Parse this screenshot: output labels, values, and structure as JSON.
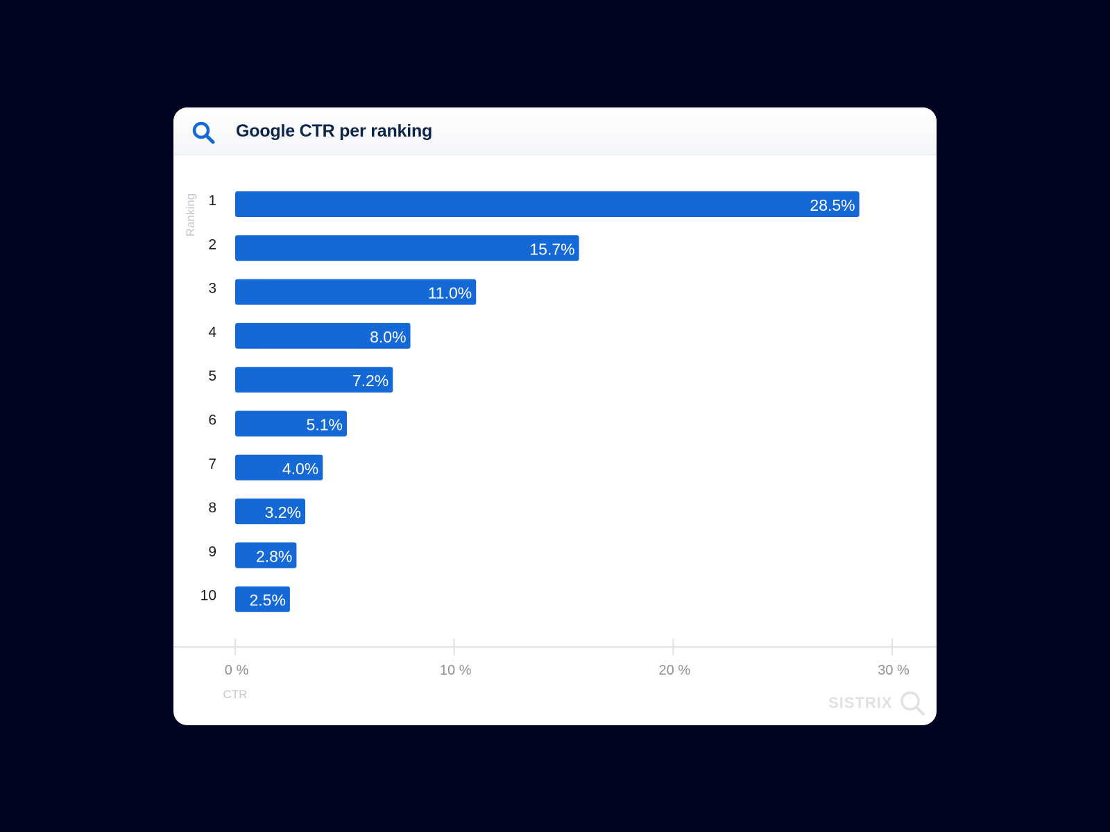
{
  "card": {
    "title": "Google CTR per ranking",
    "title_icon": "search-icon",
    "brand": "SISTRIX",
    "brand_icon": "magnifier-icon"
  },
  "colors": {
    "background": "#010420",
    "bar": "#1469d6",
    "title": "#0d2548",
    "icon": "#1469d6"
  },
  "chart_data": {
    "type": "bar",
    "orientation": "horizontal",
    "title": "Google CTR per ranking",
    "xlabel": "CTR",
    "ylabel": "Ranking",
    "categories": [
      "1",
      "2",
      "3",
      "4",
      "5",
      "6",
      "7",
      "8",
      "9",
      "10"
    ],
    "values": [
      28.5,
      15.7,
      11.0,
      8.0,
      7.2,
      5.1,
      4.0,
      3.2,
      2.8,
      2.5
    ],
    "value_labels": [
      "28.5%",
      "15.7%",
      "11.0%",
      "8.0%",
      "7.2%",
      "5.1%",
      "4.0%",
      "3.2%",
      "2.8%",
      "2.5%"
    ],
    "xlim": [
      0,
      30
    ],
    "xticks": [
      0,
      10,
      20,
      30
    ],
    "xtick_labels": [
      "0 %",
      "10 %",
      "20 %",
      "30 %"
    ],
    "grid": false,
    "legend": "none"
  }
}
